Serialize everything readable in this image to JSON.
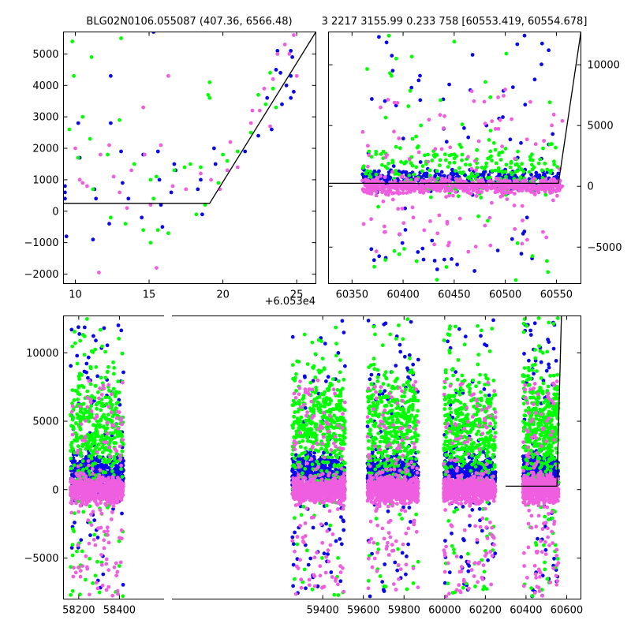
{
  "chart_data": [
    {
      "type": "scatter",
      "panel": "top-left",
      "title": "BLG02N0106.055087 (407.36, 6566.48)",
      "xlim": [
        9.2,
        26.3
      ],
      "ylim": [
        -2300,
        5700
      ],
      "x_offset_label": "+6.053e4",
      "xticks": [
        10,
        15,
        20,
        25
      ],
      "xtick_labels": [
        "10",
        "15",
        "20",
        "25"
      ],
      "yticks": [
        -2000,
        -1000,
        0,
        1000,
        2000,
        3000,
        4000,
        5000
      ],
      "ytick_labels": [
        "−2000",
        "−1000",
        "0",
        "1000",
        "2000",
        "3000",
        "4000",
        "5000"
      ],
      "y_axis_side": "left",
      "series": [
        {
          "color": "#0a0ae8",
          "marker": "circle",
          "points": [
            [
              9.3,
              800
            ],
            [
              9.3,
              600
            ],
            [
              9.3,
              400
            ],
            [
              9.4,
              -800
            ],
            [
              10.2,
              2800
            ],
            [
              10.3,
              1700
            ],
            [
              11.2,
              -900
            ],
            [
              11.3,
              700
            ],
            [
              11.4,
              400
            ],
            [
              12.3,
              -400
            ],
            [
              12.4,
              2800
            ],
            [
              12.4,
              4300
            ],
            [
              13.1,
              1900
            ],
            [
              13.2,
              900
            ],
            [
              13.6,
              400
            ],
            [
              14.5,
              -200
            ],
            [
              14.6,
              1800
            ],
            [
              15.6,
              1900
            ],
            [
              15.7,
              1000
            ],
            [
              15.8,
              200
            ],
            [
              15.9,
              -500
            ],
            [
              16.5,
              600
            ],
            [
              16.7,
              1500
            ],
            [
              16.8,
              1300
            ],
            [
              18.3,
              700
            ],
            [
              18.5,
              1000
            ],
            [
              18.6,
              -100
            ],
            [
              19.4,
              2000
            ],
            [
              19.5,
              1500
            ],
            [
              21.5,
              1900
            ],
            [
              22.4,
              2400
            ],
            [
              23.0,
              3600
            ],
            [
              23.3,
              2600
            ],
            [
              23.6,
              4500
            ],
            [
              23.7,
              5100
            ],
            [
              23.9,
              4400
            ],
            [
              24.0,
              3400
            ],
            [
              24.3,
              4000
            ],
            [
              24.6,
              4300
            ],
            [
              24.7,
              4900
            ],
            [
              24.6,
              5100
            ],
            [
              24.6,
              3600
            ],
            [
              24.8,
              3800
            ],
            [
              15.3,
              5700
            ]
          ]
        },
        {
          "color": "#00ff00",
          "marker": "circle",
          "points": [
            [
              9.6,
              2600
            ],
            [
              9.8,
              5400
            ],
            [
              9.9,
              4300
            ],
            [
              10.2,
              1700
            ],
            [
              10.5,
              3000
            ],
            [
              11.0,
              2300
            ],
            [
              11.1,
              4900
            ],
            [
              11.2,
              700
            ],
            [
              12.2,
              1800
            ],
            [
              12.4,
              -200
            ],
            [
              13.0,
              2900
            ],
            [
              13.1,
              5500
            ],
            [
              13.4,
              -400
            ],
            [
              14.0,
              1500
            ],
            [
              14.6,
              -600
            ],
            [
              15.1,
              1000
            ],
            [
              15.1,
              -1000
            ],
            [
              15.3,
              400
            ],
            [
              15.5,
              1100
            ],
            [
              15.6,
              -600
            ],
            [
              16.3,
              -700
            ],
            [
              16.7,
              1300
            ],
            [
              17.4,
              1400
            ],
            [
              17.8,
              1500
            ],
            [
              18.2,
              -100
            ],
            [
              18.5,
              1400
            ],
            [
              18.8,
              200
            ],
            [
              19.0,
              3700
            ],
            [
              19.1,
              4100
            ],
            [
              19.1,
              3600
            ],
            [
              19.7,
              900
            ],
            [
              20.0,
              1800
            ],
            [
              20.3,
              1600
            ],
            [
              21.0,
              1900
            ],
            [
              21.9,
              2500
            ],
            [
              22.4,
              3700
            ],
            [
              22.9,
              3400
            ],
            [
              23.2,
              4400
            ],
            [
              23.4,
              3900
            ],
            [
              23.6,
              3300
            ]
          ]
        },
        {
          "color": "#f05ee0",
          "marker": "circle",
          "points": [
            [
              10.0,
              2000
            ],
            [
              10.3,
              1000
            ],
            [
              10.5,
              900
            ],
            [
              10.8,
              800
            ],
            [
              11.6,
              -1950
            ],
            [
              11.7,
              1800
            ],
            [
              12.3,
              2100
            ],
            [
              12.6,
              1100
            ],
            [
              13.0,
              600
            ],
            [
              13.5,
              100
            ],
            [
              13.8,
              1300
            ],
            [
              14.6,
              3300
            ],
            [
              14.7,
              1800
            ],
            [
              15.1,
              200
            ],
            [
              15.5,
              -1800
            ],
            [
              15.8,
              2100
            ],
            [
              16.3,
              4300
            ],
            [
              16.6,
              800
            ],
            [
              17.5,
              700
            ],
            [
              18.5,
              1200
            ],
            [
              19.2,
              1000
            ],
            [
              19.8,
              700
            ],
            [
              20.3,
              1300
            ],
            [
              21.0,
              1400
            ],
            [
              22.0,
              3200
            ],
            [
              22.5,
              3200
            ],
            [
              23.2,
              2700
            ],
            [
              23.4,
              4200
            ],
            [
              23.7,
              5000
            ],
            [
              24.2,
              5300
            ],
            [
              24.5,
              5000
            ],
            [
              24.8,
              5600
            ],
            [
              25.0,
              4300
            ],
            [
              22.8,
              3900
            ],
            [
              21.9,
              2800
            ],
            [
              20.5,
              2200
            ]
          ]
        }
      ],
      "fit_line": [
        [
          9.2,
          250
        ],
        [
          19.1,
          250
        ],
        [
          26.3,
          5700
        ]
      ]
    },
    {
      "type": "scatter",
      "panel": "top-right",
      "title": "3 2217 3155.99 0.233 758 [60553.419, 60554.678]",
      "xlim": [
        60327,
        60574
      ],
      "ylim": [
        -8000,
        12700
      ],
      "xticks": [
        60350,
        60400,
        60450,
        60500,
        60550
      ],
      "xtick_labels": [
        "60350",
        "60400",
        "60450",
        "60500",
        "60550"
      ],
      "yticks": [
        -5000,
        0,
        5000,
        10000
      ],
      "ytick_labels": [
        "−5000",
        "0",
        "5000",
        "10000"
      ],
      "y_axis_side": "right",
      "series": [
        {
          "color": "#0a0ae8",
          "marker": "circle",
          "x_range": [
            60360,
            60552
          ],
          "core_spread": [
            -600,
            1800
          ],
          "outlier_range": [
            -7500,
            12500
          ],
          "density": "high"
        },
        {
          "color": "#00ff00",
          "marker": "circle",
          "x_range": [
            60360,
            60552
          ],
          "core_spread": [
            -2000,
            4500
          ],
          "outlier_range": [
            -7800,
            12600
          ],
          "density": "medium"
        },
        {
          "color": "#f05ee0",
          "marker": "circle",
          "x_range": [
            60360,
            60556
          ],
          "core_spread": [
            -1000,
            1000
          ],
          "outlier_range": [
            -5500,
            8000
          ],
          "density": "very high"
        }
      ],
      "fit_line": [
        [
          60327,
          250
        ],
        [
          60552,
          250
        ],
        [
          60574,
          12700
        ]
      ]
    },
    {
      "type": "scatter",
      "panel": "bottom",
      "xlim": [
        58125,
        60670
      ],
      "ylim": [
        -8000,
        12700
      ],
      "xticks": [
        58200,
        58400,
        59400,
        59600,
        59800,
        60000,
        60200,
        60400,
        60600
      ],
      "xtick_labels": [
        "58200",
        "58400",
        "59400",
        "59600",
        "59800",
        "60000",
        "60200",
        "60400",
        "60600"
      ],
      "yticks": [
        -5000,
        0,
        5000,
        10000
      ],
      "ytick_labels": [
        "−5000",
        "0",
        "5000",
        "10000"
      ],
      "y_axis_side": "left",
      "axis_break": "between 58400 and 59400",
      "season_ranges": [
        [
          58160,
          58420
        ],
        [
          59250,
          59510
        ],
        [
          59620,
          59870
        ],
        [
          59995,
          60250
        ],
        [
          60385,
          60560
        ]
      ],
      "series": [
        {
          "color": "#0a0ae8",
          "marker": "circle",
          "core_spread": [
            -1000,
            3500
          ],
          "outlier_range": [
            -7800,
            12500
          ],
          "density": "high"
        },
        {
          "color": "#00ff00",
          "marker": "circle",
          "core_spread": [
            -2000,
            11000
          ],
          "outlier_range": [
            -7800,
            12600
          ],
          "density": "high"
        },
        {
          "color": "#f05ee0",
          "marker": "circle",
          "core_spread": [
            -1500,
            1500
          ],
          "outlier_range": [
            -7800,
            8000
          ],
          "density": "very high"
        }
      ],
      "fit_line": [
        [
          60300,
          250
        ],
        [
          60552,
          250
        ],
        [
          60574,
          12700
        ]
      ]
    }
  ]
}
